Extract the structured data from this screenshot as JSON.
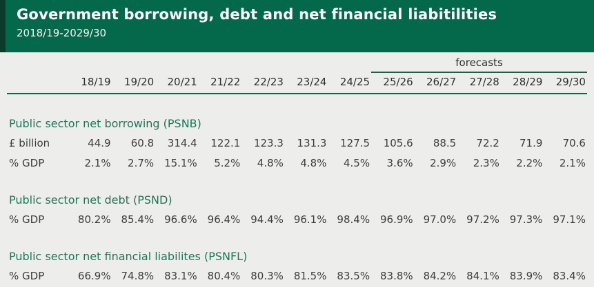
{
  "header": {
    "title": "Government borrowing, debt and net financial liabitilities",
    "subtitle": "2018/19-2029/30"
  },
  "chart_data": {
    "type": "table",
    "title": "Government borrowing, debt and net financial liabitilities",
    "subtitle": "2018/19-2029/30",
    "forecasts_label": "forecasts",
    "forecast_columns": [
      "25/26",
      "26/27",
      "27/28",
      "28/29",
      "29/30"
    ],
    "categories": [
      "18/19",
      "19/20",
      "20/21",
      "21/22",
      "22/23",
      "23/24",
      "24/25",
      "25/26",
      "26/27",
      "27/28",
      "28/29",
      "29/30"
    ],
    "sections": [
      {
        "title": "Public sector net borrowing (PSNB)",
        "rows": [
          {
            "label": "£ billion",
            "values": [
              "44.9",
              "60.8",
              "314.4",
              "122.1",
              "123.3",
              "131.3",
              "127.5",
              "105.6",
              "88.5",
              "72.2",
              "71.9",
              "70.6"
            ]
          },
          {
            "label": "% GDP",
            "values": [
              "2.1%",
              "2.7%",
              "15.1%",
              "5.2%",
              "4.8%",
              "4.8%",
              "4.5%",
              "3.6%",
              "2.9%",
              "2.3%",
              "2.2%",
              "2.1%"
            ]
          }
        ]
      },
      {
        "title": "Public sector net debt (PSND)",
        "rows": [
          {
            "label": "% GDP",
            "values": [
              "80.2%",
              "85.4%",
              "96.6%",
              "96.4%",
              "94.4%",
              "96.1%",
              "98.4%",
              "96.9%",
              "97.0%",
              "97.2%",
              "97.3%",
              "97.1%"
            ]
          }
        ]
      },
      {
        "title": "Public sector net financial liabilites (PSNFL)",
        "rows": [
          {
            "label": "% GDP",
            "values": [
              "66.9%",
              "74.8%",
              "83.1%",
              "80.4%",
              "80.3%",
              "81.5%",
              "83.5%",
              "83.8%",
              "84.2%",
              "84.1%",
              "83.9%",
              "83.4%"
            ]
          }
        ]
      }
    ]
  },
  "colors": {
    "banner_background": "#04694B",
    "banner_stripe": "#0C3B2C",
    "page_background": "#EDEDEB",
    "accent_green_text": "#1B7659",
    "rule_green": "#156348",
    "data_text": "#3D3D3C"
  }
}
